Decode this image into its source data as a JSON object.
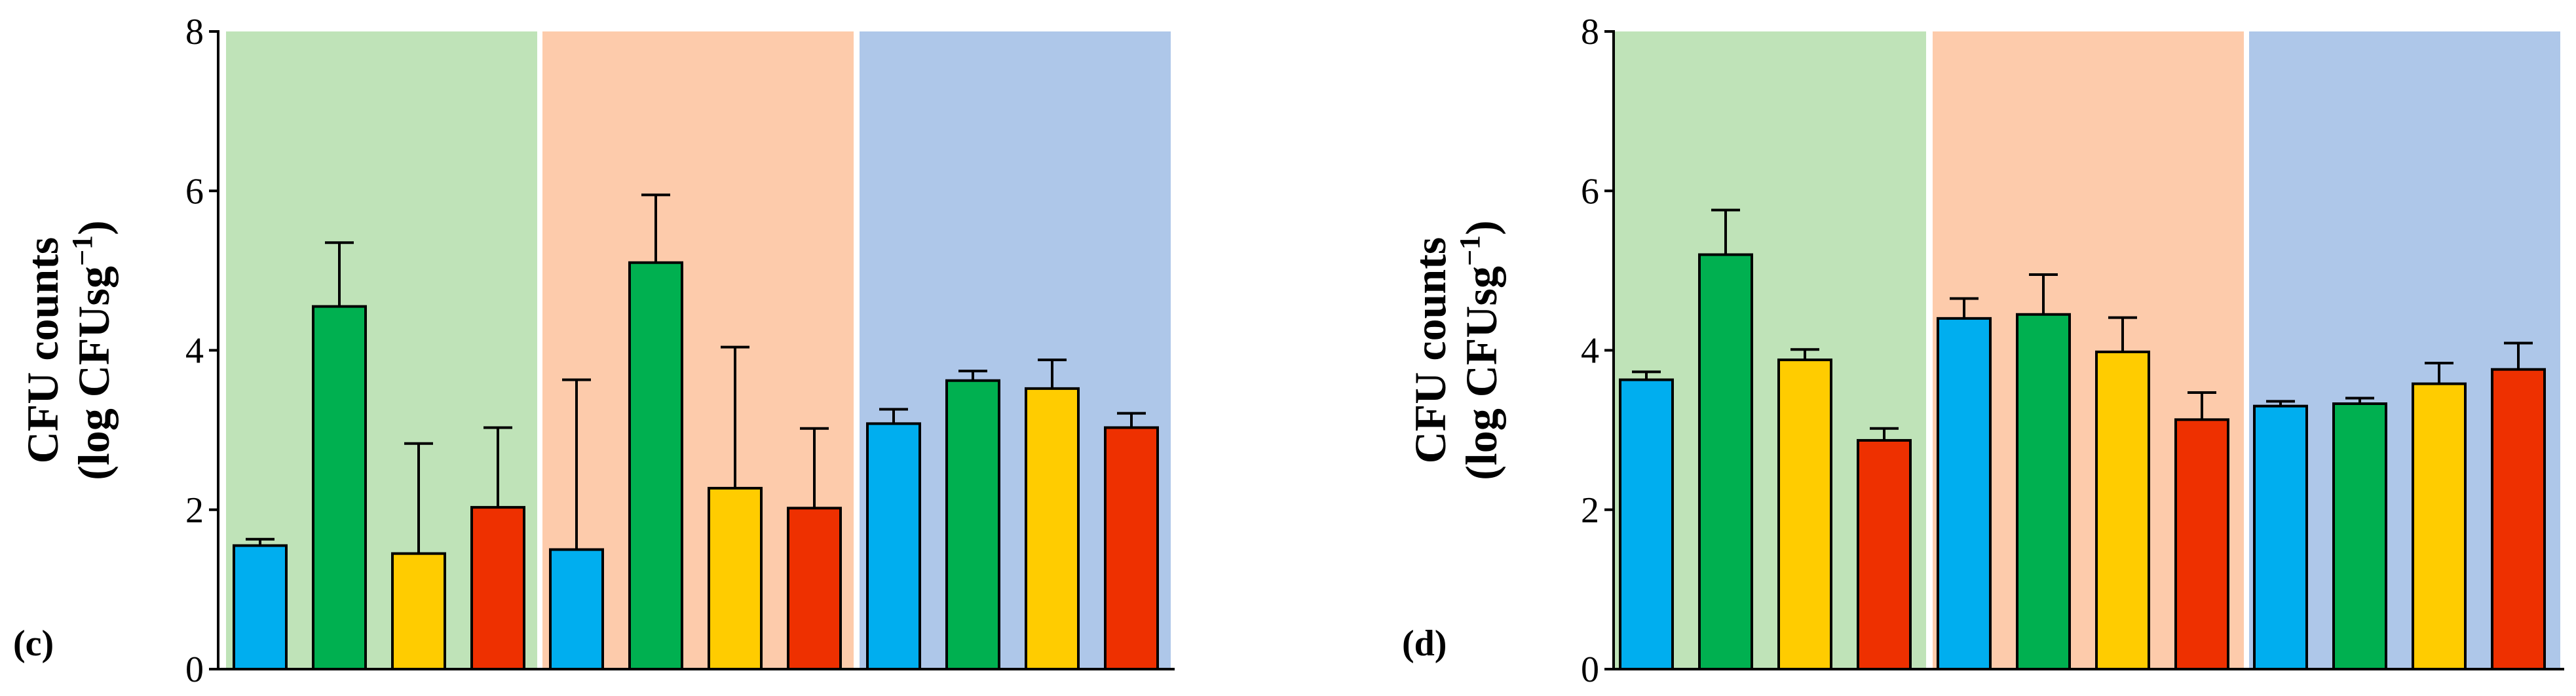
{
  "chart_data": [
    {
      "type": "bar",
      "panel_label": "(c)",
      "ylabel_line1": "CFU counts",
      "ylabel_line2": "(log CFUsg",
      "ylabel_sup": "−1",
      "ylabel_close": ")",
      "ylim": [
        0,
        8
      ],
      "yticks": [
        "0",
        "2",
        "4",
        "6",
        "8"
      ],
      "group_backgrounds": [
        "#bfe3b8",
        "#fdcbab",
        "#aec7e9"
      ],
      "series_colors": [
        "#00aeef",
        "#00b050",
        "#ffcc00",
        "#ee3000"
      ],
      "groups": [
        {
          "values": [
            1.55,
            4.55,
            1.45,
            2.03
          ],
          "errors": [
            0.08,
            0.8,
            1.38,
            1.0
          ]
        },
        {
          "values": [
            1.5,
            5.1,
            2.27,
            2.02
          ],
          "errors": [
            2.13,
            0.85,
            1.77,
            1.0
          ]
        },
        {
          "values": [
            3.08,
            3.62,
            3.52,
            3.03
          ],
          "errors": [
            0.18,
            0.12,
            0.36,
            0.18
          ]
        }
      ]
    },
    {
      "type": "bar",
      "panel_label": "(d)",
      "ylabel_line1": "CFU counts",
      "ylabel_line2": "(log CFUsg",
      "ylabel_sup": "−1",
      "ylabel_close": ")",
      "ylim": [
        0,
        8
      ],
      "yticks": [
        "0",
        "2",
        "4",
        "6",
        "8"
      ],
      "group_backgrounds": [
        "#bfe3b8",
        "#fdcbab",
        "#aec7e9"
      ],
      "series_colors": [
        "#00aeef",
        "#00b050",
        "#ffcc00",
        "#ee3000"
      ],
      "groups": [
        {
          "values": [
            3.63,
            5.2,
            3.88,
            2.87
          ],
          "errors": [
            0.1,
            0.56,
            0.13,
            0.15
          ]
        },
        {
          "values": [
            4.4,
            4.45,
            3.98,
            3.13
          ],
          "errors": [
            0.25,
            0.5,
            0.43,
            0.34
          ]
        },
        {
          "values": [
            3.3,
            3.33,
            3.58,
            3.76
          ],
          "errors": [
            0.06,
            0.07,
            0.26,
            0.33
          ]
        }
      ]
    }
  ]
}
